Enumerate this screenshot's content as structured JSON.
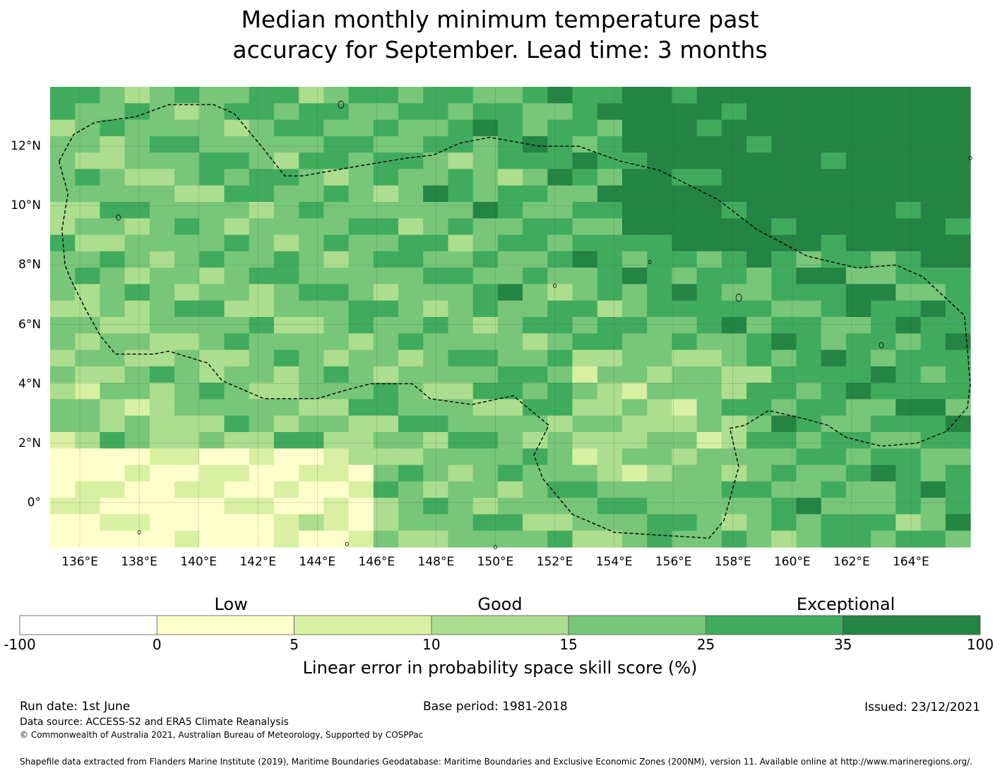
{
  "title": {
    "line1": "Median monthly minimum temperature past",
    "line2": "accuracy for September. Lead time: 3 months"
  },
  "map": {
    "lon_range": [
      135,
      166
    ],
    "lat_range": [
      -1.5,
      14
    ],
    "lat_labels": [
      "12°N",
      "10°N",
      "8°N",
      "6°N",
      "4°N",
      "2°N",
      "0°"
    ],
    "lat_values": [
      12,
      10,
      8,
      6,
      4,
      2,
      0
    ],
    "lon_labels": [
      "136°E",
      "138°E",
      "140°E",
      "142°E",
      "144°E",
      "146°E",
      "148°E",
      "150°E",
      "152°E",
      "154°E",
      "156°E",
      "158°E",
      "160°E",
      "162°E",
      "164°E"
    ],
    "lon_values": [
      136,
      138,
      140,
      142,
      144,
      146,
      148,
      150,
      152,
      154,
      156,
      158,
      160,
      162,
      164
    ],
    "gridlines": true,
    "boundary_style": "dashed black line",
    "colors": [
      "#ffffff",
      "#ffffcc",
      "#d9f0a3",
      "#addd8e",
      "#78c679",
      "#41ab5d",
      "#238443"
    ]
  },
  "colorbar": {
    "categories": [
      {
        "label": "Low",
        "center": 0.22
      },
      {
        "label": "Good",
        "center": 0.5
      },
      {
        "label": "Exceptional",
        "center": 0.86
      }
    ],
    "bins": [
      {
        "from": "-100",
        "to": "0",
        "color": "#ffffff"
      },
      {
        "from": "0",
        "to": "5",
        "color": "#ffffcc"
      },
      {
        "from": "5",
        "to": "10",
        "color": "#d9f0a3"
      },
      {
        "from": "10",
        "to": "15",
        "color": "#addd8e"
      },
      {
        "from": "15",
        "to": "25",
        "color": "#78c679"
      },
      {
        "from": "25",
        "to": "35",
        "color": "#41ab5d"
      },
      {
        "from": "35",
        "to": "100",
        "color": "#238443"
      }
    ],
    "ticks": [
      "-100",
      "0",
      "5",
      "10",
      "15",
      "25",
      "35",
      "100"
    ],
    "label": "Linear error in probability space skill score (%)"
  },
  "footer": {
    "run_date": "Run date: 1st June",
    "base_period": "Base period: 1981-2018",
    "issued": "Issued: 23/12/2021",
    "data_source": "Data source: ACCESS-S2 and ERA5 Climate Reanalysis",
    "copyright": "© Commonwealth of Australia 2021, Australian Bureau of Meteorology, Supported by COSPPac",
    "shapefile": "Shapefile data extracted from Flanders Marine Institute (2019), Maritime Boundaries Geodatabase: Maritime Boundaries and Exclusive Economic Zones (200NM), version 11. Available online at http://www.marineregions.org/."
  }
}
